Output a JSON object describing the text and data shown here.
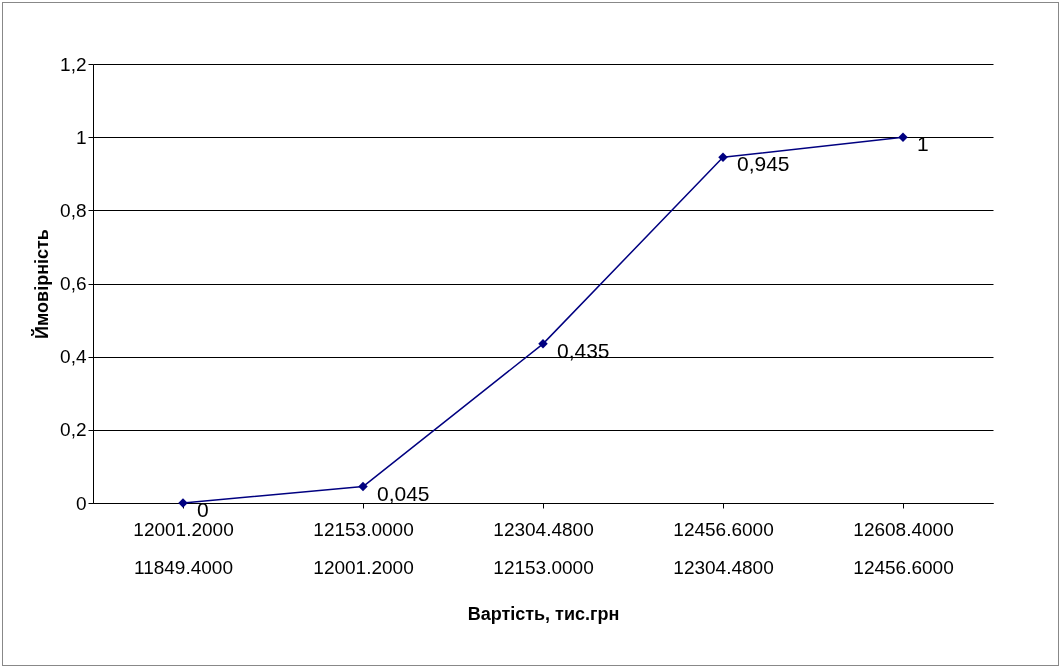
{
  "chart_data": {
    "type": "line",
    "xlabel": "Вартість, тис.грн",
    "ylabel": "Ймовірність",
    "categories": [
      "12001.2000\n11849.4000",
      "12153.0000\n12001.2000",
      "12304.4800\n12153.0000",
      "12456.6000\n12304.4800",
      "12608.4000\n12456.6000"
    ],
    "series": [
      {
        "color": "#000080",
        "values": [
          0,
          0.045,
          0.435,
          0.945,
          1
        ],
        "value_labels": [
          "0",
          "0,045",
          "0,435",
          "0,945",
          "1"
        ]
      }
    ],
    "ylim": [
      0,
      1.2
    ],
    "yticks": [
      0,
      {
        "value": 0.2,
        "label": "0,2"
      },
      {
        "value": 0.4,
        "label": "0,4"
      },
      {
        "value": 0.6,
        "label": "0,6"
      },
      {
        "value": 0.8,
        "label": "0,8"
      },
      1,
      {
        "value": 1.2,
        "label": "1,2"
      }
    ],
    "grid": "y",
    "marker": "diamond",
    "line_style": "solid"
  }
}
